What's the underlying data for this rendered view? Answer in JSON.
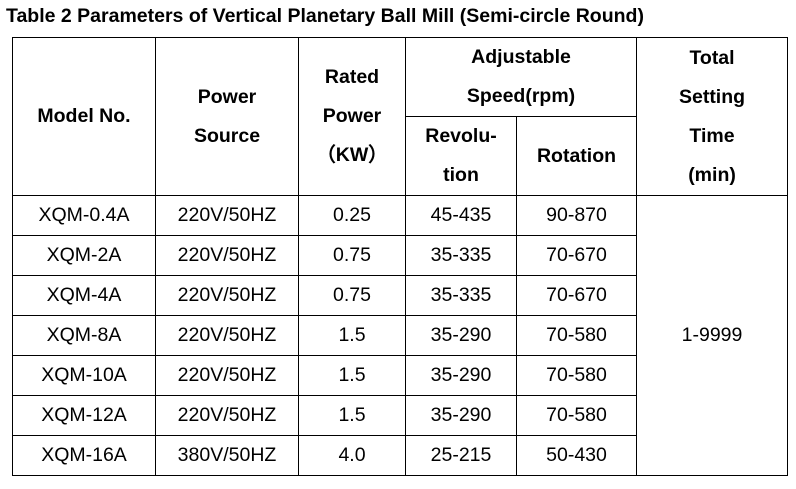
{
  "title": "Table 2 Parameters of Vertical Planetary Ball Mill (Semi-circle Round)",
  "headers": {
    "model": "Model No.",
    "power_source": [
      "Power",
      "Source"
    ],
    "rated_power": [
      "Rated",
      "Power",
      "（KW）"
    ],
    "adjustable_speed": [
      "Adjustable",
      "Speed(rpm)"
    ],
    "revolution": [
      "Revolu-",
      "tion"
    ],
    "rotation": "Rotation",
    "total_time": [
      "Total",
      "Setting",
      "Time",
      "(min)"
    ]
  },
  "rows": [
    {
      "model": "XQM-0.4A",
      "source": "220V/50HZ",
      "power": "0.25",
      "revolution": "45-435",
      "rotation": "90-870"
    },
    {
      "model": "XQM-2A",
      "source": "220V/50HZ",
      "power": "0.75",
      "revolution": "35-335",
      "rotation": "70-670"
    },
    {
      "model": "XQM-4A",
      "source": "220V/50HZ",
      "power": "0.75",
      "revolution": "35-335",
      "rotation": "70-670"
    },
    {
      "model": "XQM-8A",
      "source": "220V/50HZ",
      "power": "1.5",
      "revolution": "35-290",
      "rotation": "70-580"
    },
    {
      "model": "XQM-10A",
      "source": "220V/50HZ",
      "power": "1.5",
      "revolution": "35-290",
      "rotation": "70-580"
    },
    {
      "model": "XQM-12A",
      "source": "220V/50HZ",
      "power": "1.5",
      "revolution": "35-290",
      "rotation": "70-580"
    },
    {
      "model": "XQM-16A",
      "source": "380V/50HZ",
      "power": "4.0",
      "revolution": "25-215",
      "rotation": "50-430"
    }
  ],
  "total_time_value": "1-9999"
}
